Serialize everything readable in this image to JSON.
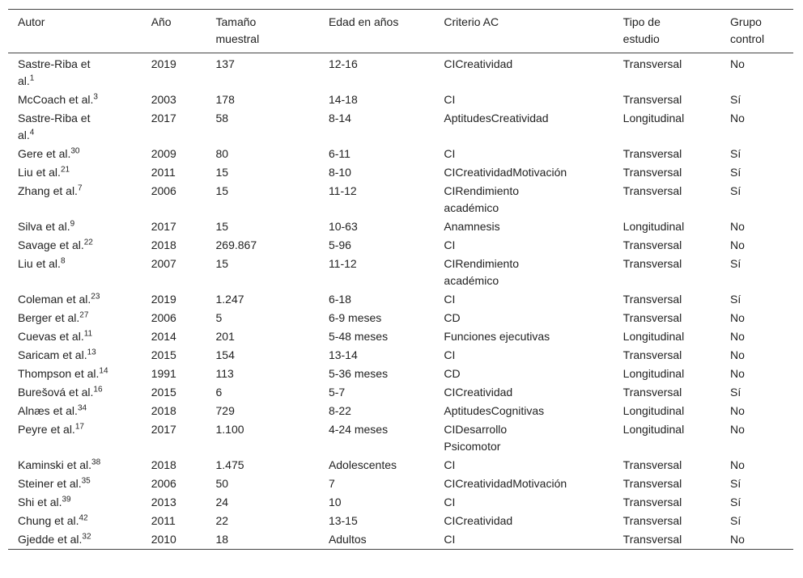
{
  "table": {
    "headers": [
      "Autor",
      "Año",
      "Tamaño muestral",
      "Edad en años",
      "Criterio AC",
      "Tipo de estudio",
      "Grupo control"
    ],
    "rows": [
      {
        "autor": "Sastre-Riba et al.",
        "ref": "1",
        "anio": "2019",
        "n": "137",
        "edad": "12-16",
        "criterio": "CICreatividad",
        "tipo": "Transversal",
        "grupo": "No"
      },
      {
        "autor": "McCoach et al.",
        "ref": "3",
        "anio": "2003",
        "n": "178",
        "edad": "14-18",
        "criterio": "CI",
        "tipo": "Transversal",
        "grupo": "Sí"
      },
      {
        "autor": "Sastre-Riba et al.",
        "ref": "4",
        "anio": "2017",
        "n": "58",
        "edad": "8-14",
        "criterio": "AptitudesCreatividad",
        "tipo": "Longitudinal",
        "grupo": "No"
      },
      {
        "autor": "Gere et al.",
        "ref": "30",
        "anio": "2009",
        "n": "80",
        "edad": "6-11",
        "criterio": "CI",
        "tipo": "Transversal",
        "grupo": "Sí"
      },
      {
        "autor": "Liu et al.",
        "ref": "21",
        "anio": "2011",
        "n": "15",
        "edad": "8-10",
        "criterio": "CICreatividadMotivación",
        "tipo": "Transversal",
        "grupo": "Sí"
      },
      {
        "autor": "Zhang et al.",
        "ref": "7",
        "anio": "2006",
        "n": "15",
        "edad": "11-12",
        "criterio": "CIRendimiento académico",
        "tipo": "Transversal",
        "grupo": "Sí"
      },
      {
        "autor": "Silva et al.",
        "ref": "9",
        "anio": "2017",
        "n": "15",
        "edad": "10-63",
        "criterio": "Anamnesis",
        "tipo": "Longitudinal",
        "grupo": "No"
      },
      {
        "autor": "Savage et al.",
        "ref": "22",
        "anio": "2018",
        "n": "269.867",
        "edad": "5-96",
        "criterio": "CI",
        "tipo": "Transversal",
        "grupo": "No"
      },
      {
        "autor": "Liu et al.",
        "ref": "8",
        "anio": "2007",
        "n": "15",
        "edad": "11-12",
        "criterio": "CIRendimiento académico",
        "tipo": "Transversal",
        "grupo": "Sí"
      },
      {
        "autor": "Coleman et al.",
        "ref": "23",
        "anio": "2019",
        "n": "1.247",
        "edad": "6-18",
        "criterio": "CI",
        "tipo": "Transversal",
        "grupo": "Sí"
      },
      {
        "autor": "Berger et al.",
        "ref": "27",
        "anio": "2006",
        "n": "5",
        "edad": "6-9 meses",
        "criterio": "CD",
        "tipo": "Transversal",
        "grupo": "No"
      },
      {
        "autor": "Cuevas et al.",
        "ref": "11",
        "anio": "2014",
        "n": "201",
        "edad": "5-48 meses",
        "criterio": "Funciones ejecutivas",
        "tipo": "Longitudinal",
        "grupo": "No"
      },
      {
        "autor": "Saricam et al.",
        "ref": "13",
        "anio": "2015",
        "n": "154",
        "edad": "13-14",
        "criterio": "CI",
        "tipo": "Transversal",
        "grupo": "No"
      },
      {
        "autor": "Thompson et al.",
        "ref": "14",
        "anio": "1991",
        "n": "113",
        "edad": "5-36 meses",
        "criterio": "CD",
        "tipo": "Longitudinal",
        "grupo": "No"
      },
      {
        "autor": "Burešová et al.",
        "ref": "16",
        "anio": "2015",
        "n": "6",
        "edad": "5-7",
        "criterio": "CICreatividad",
        "tipo": "Transversal",
        "grupo": "Sí"
      },
      {
        "autor": "Alnæs et al.",
        "ref": "34",
        "anio": "2018",
        "n": "729",
        "edad": "8-22",
        "criterio": "AptitudesCognitivas",
        "tipo": "Longitudinal",
        "grupo": "No"
      },
      {
        "autor": "Peyre et al.",
        "ref": "17",
        "anio": "2017",
        "n": "1.100",
        "edad": "4-24 meses",
        "criterio": "CIDesarrollo Psicomotor",
        "tipo": "Longitudinal",
        "grupo": "No"
      },
      {
        "autor": "Kaminski et al.",
        "ref": "38",
        "anio": "2018",
        "n": "1.475",
        "edad": "Adolescentes",
        "criterio": "CI",
        "tipo": "Transversal",
        "grupo": "No"
      },
      {
        "autor": "Steiner et al.",
        "ref": "35",
        "anio": "2006",
        "n": "50",
        "edad": "7",
        "criterio": "CICreatividadMotivación",
        "tipo": "Transversal",
        "grupo": "Sí"
      },
      {
        "autor": "Shi et al.",
        "ref": "39",
        "anio": "2013",
        "n": "24",
        "edad": "10",
        "criterio": "CI",
        "tipo": "Transversal",
        "grupo": "Sí"
      },
      {
        "autor": "Chung et al.",
        "ref": "42",
        "anio": "2011",
        "n": "22",
        "edad": "13-15",
        "criterio": "CICreatividad",
        "tipo": "Transversal",
        "grupo": "Sí"
      },
      {
        "autor": "Gjedde et al.",
        "ref": "32",
        "anio": "2010",
        "n": "18",
        "edad": "Adultos",
        "criterio": "CI",
        "tipo": "Transversal",
        "grupo": "No"
      }
    ]
  }
}
